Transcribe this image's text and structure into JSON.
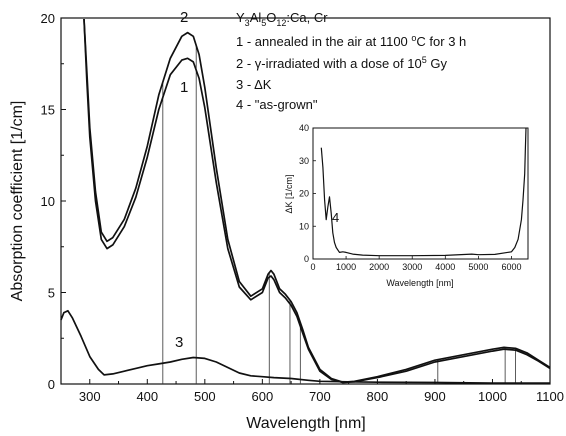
{
  "chart_data": {
    "type": "line",
    "xlabel": "Wavelength [nm]",
    "ylabel": "Absorption coefficient [1/cm]",
    "xlim": [
      250,
      1100
    ],
    "ylim": [
      0,
      20
    ],
    "xticks": [
      "300",
      "400",
      "500",
      "600",
      "700",
      "800",
      "900",
      "1000",
      "1100"
    ],
    "yticks": [
      "0",
      "5",
      "10",
      "15",
      "20"
    ],
    "legend": {
      "title_parts": [
        "Y",
        "3",
        "Al",
        "5",
        "O",
        "12",
        ":Ca, Cr"
      ],
      "entry1_parts": [
        "1 - annealed in the air at 1100 ",
        "o",
        "C for 3 h"
      ],
      "entry2_parts": [
        "2 - ",
        "γ",
        "-irradiated with a dose of 10",
        "5",
        " Gy"
      ],
      "entry3": "3 - ΔK",
      "entry4": "4 - \"as-grown\""
    },
    "curve_labels": [
      "1",
      "2",
      "3"
    ],
    "series": [
      {
        "name": "2",
        "x": [
          290,
          295,
          300,
          310,
          320,
          330,
          340,
          360,
          380,
          400,
          420,
          440,
          460,
          470,
          480,
          490,
          500,
          520,
          540,
          560,
          580,
          600,
          610,
          615,
          620,
          630,
          640,
          650,
          660,
          670,
          680,
          700,
          720,
          740,
          760,
          800,
          850,
          900,
          950,
          1000,
          1020,
          1040,
          1060,
          1080,
          1100
        ],
        "y": [
          20,
          17,
          14,
          10.5,
          8.3,
          7.8,
          8.0,
          9.0,
          10.7,
          13.0,
          15.8,
          17.8,
          19.0,
          19.2,
          19.0,
          18.0,
          16.2,
          11.8,
          7.9,
          5.6,
          4.8,
          5.2,
          6.0,
          6.2,
          6.0,
          5.2,
          4.9,
          4.5,
          3.9,
          3.0,
          2.0,
          0.8,
          0.3,
          0.1,
          0.15,
          0.4,
          0.8,
          1.3,
          1.6,
          1.9,
          2.0,
          1.95,
          1.7,
          1.3,
          0.9
        ]
      },
      {
        "name": "1",
        "x": [
          290,
          295,
          300,
          310,
          320,
          330,
          340,
          360,
          380,
          400,
          420,
          440,
          460,
          470,
          480,
          490,
          500,
          520,
          540,
          560,
          580,
          600,
          610,
          615,
          620,
          630,
          640,
          650,
          660,
          670,
          680,
          700,
          720,
          740,
          760,
          800,
          850,
          900,
          950,
          1000,
          1020,
          1040,
          1060,
          1080,
          1100
        ],
        "y": [
          20,
          16.5,
          13.5,
          10.0,
          7.9,
          7.4,
          7.6,
          8.6,
          10.2,
          12.4,
          15.0,
          16.9,
          17.7,
          17.8,
          17.6,
          16.7,
          15.1,
          11.0,
          7.4,
          5.3,
          4.6,
          5.0,
          5.8,
          5.9,
          5.7,
          5.0,
          4.7,
          4.3,
          3.7,
          2.8,
          1.9,
          0.7,
          0.25,
          0.08,
          0.12,
          0.35,
          0.7,
          1.2,
          1.5,
          1.8,
          1.9,
          1.85,
          1.6,
          1.25,
          0.85
        ]
      },
      {
        "name": "3",
        "x": [
          250,
          255,
          262,
          270,
          285,
          300,
          315,
          325,
          340,
          360,
          380,
          400,
          420,
          440,
          460,
          480,
          500,
          520,
          540,
          560,
          580,
          600,
          620,
          650,
          680,
          700,
          750,
          800,
          900,
          1000,
          1100
        ],
        "y": [
          3.5,
          3.9,
          4.0,
          3.6,
          2.6,
          1.5,
          0.8,
          0.5,
          0.55,
          0.7,
          0.85,
          1.0,
          1.1,
          1.2,
          1.35,
          1.45,
          1.4,
          1.2,
          0.9,
          0.6,
          0.45,
          0.4,
          0.35,
          0.3,
          0.2,
          0.15,
          0.12,
          0.1,
          0.08,
          0.05,
          0.05
        ]
      }
    ],
    "marker_lines_x": [
      427,
      485,
      612,
      648,
      666,
      905,
      1022,
      1040
    ],
    "inset": {
      "type": "line",
      "xlabel": "Wavelength [nm]",
      "ylabel": "ΔK [1/cm]",
      "xlim": [
        0,
        6500
      ],
      "ylim": [
        0,
        40
      ],
      "xticks": [
        "0",
        "1000",
        "2000",
        "3000",
        "4000",
        "5000",
        "6000"
      ],
      "yticks": [
        "0",
        "10",
        "20",
        "30",
        "40"
      ],
      "curve_label": "4",
      "series": [
        {
          "name": "4",
          "x": [
            250,
            300,
            350,
            400,
            450,
            500,
            550,
            600,
            650,
            700,
            800,
            900,
            1000,
            1200,
            1500,
            2000,
            3000,
            4000,
            4800,
            5000,
            5500,
            6000,
            6100,
            6200,
            6300,
            6350,
            6400,
            6420,
            6440
          ],
          "y": [
            34,
            28,
            18,
            12,
            16,
            19,
            14,
            8,
            5,
            3.5,
            2.0,
            2.2,
            2.0,
            1.5,
            1.2,
            1.0,
            1.0,
            1.1,
            1.5,
            1.3,
            1.4,
            2.2,
            3.5,
            6,
            12,
            18,
            26,
            34,
            40
          ]
        }
      ]
    }
  }
}
